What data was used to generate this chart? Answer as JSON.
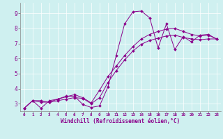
{
  "title": "",
  "xlabel": "Windchill (Refroidissement éolien,°C)",
  "ylabel": "",
  "background_color": "#cff0f0",
  "line_color": "#8b008b",
  "xlim": [
    -0.5,
    23.5
  ],
  "ylim": [
    2.5,
    9.7
  ],
  "yticks": [
    3,
    4,
    5,
    6,
    7,
    8,
    9
  ],
  "xticks": [
    0,
    1,
    2,
    3,
    4,
    5,
    6,
    7,
    8,
    9,
    10,
    11,
    12,
    13,
    14,
    15,
    16,
    17,
    18,
    19,
    20,
    21,
    22,
    23
  ],
  "series": [
    [
      2.7,
      3.2,
      2.7,
      3.2,
      3.3,
      3.5,
      3.5,
      2.95,
      2.75,
      2.85,
      4.1,
      6.2,
      8.3,
      9.1,
      9.15,
      8.7,
      6.7,
      8.3,
      6.6,
      7.45,
      7.1,
      7.55,
      7.6,
      7.3
    ],
    [
      2.7,
      3.2,
      3.2,
      3.1,
      3.3,
      3.45,
      3.6,
      3.4,
      3.05,
      3.9,
      4.8,
      5.5,
      6.2,
      6.8,
      7.3,
      7.6,
      7.8,
      7.95,
      8.0,
      7.8,
      7.6,
      7.5,
      7.55,
      7.3
    ],
    [
      2.7,
      3.2,
      3.1,
      3.1,
      3.2,
      3.3,
      3.4,
      3.35,
      3.0,
      3.4,
      4.4,
      5.2,
      5.9,
      6.5,
      6.95,
      7.2,
      7.35,
      7.5,
      7.55,
      7.4,
      7.3,
      7.25,
      7.3,
      7.3
    ]
  ]
}
